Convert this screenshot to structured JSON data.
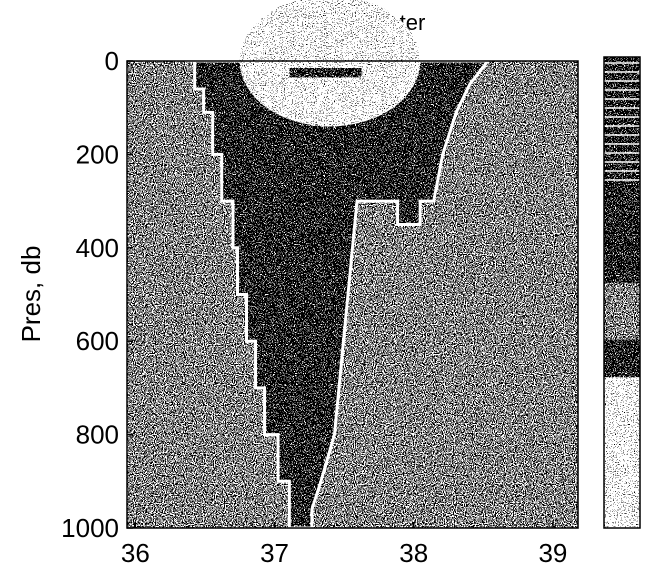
{
  "chart_data": {
    "type": "heatmap",
    "title": "Mean U;Winter",
    "y_label": "Pres, db",
    "xlim": [
      35.94,
      39.18
    ],
    "xticks": [
      36,
      37,
      38,
      39
    ],
    "ylim": [
      0,
      1000
    ],
    "y_inverted": true,
    "yticks": [
      0,
      200,
      400,
      600,
      800,
      1000
    ],
    "colorbar": true
  }
}
